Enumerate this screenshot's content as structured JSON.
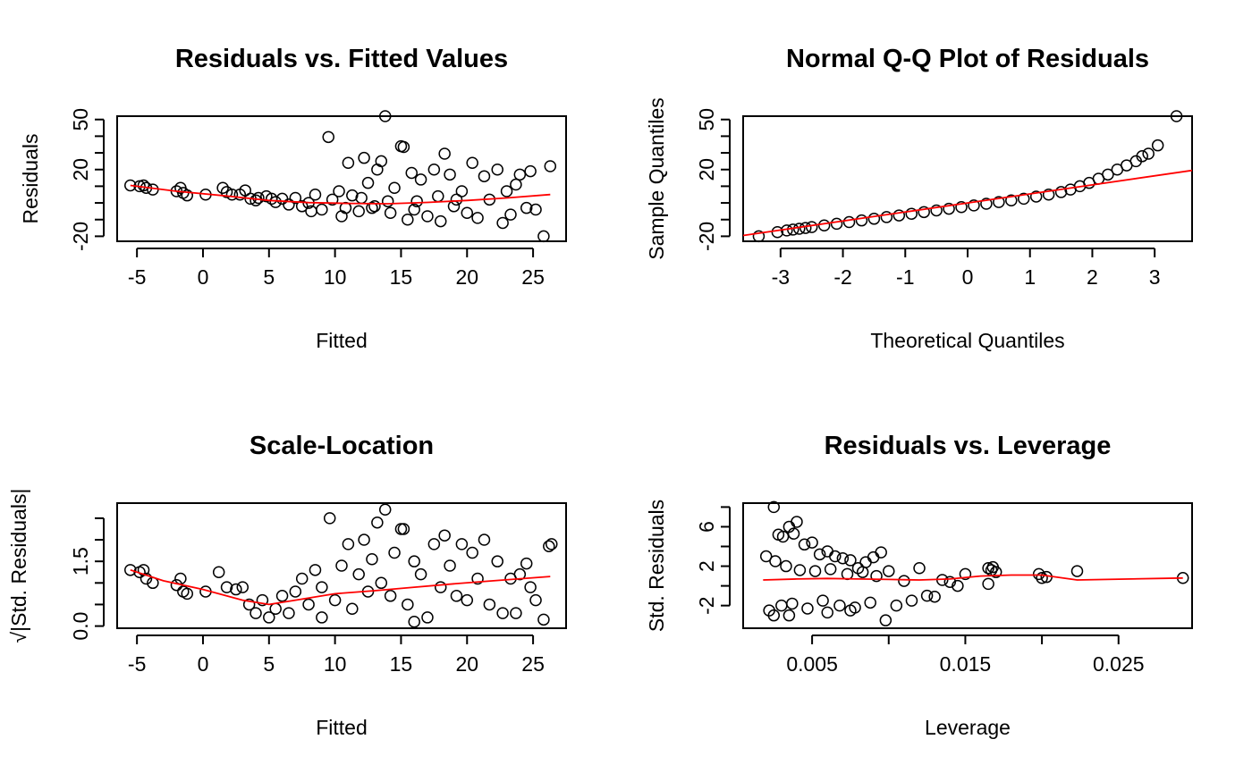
{
  "chart_data": [
    {
      "type": "scatter",
      "title": "Residuals vs. Fitted Values",
      "xlabel": "Fitted",
      "ylabel": "Residuals",
      "xlim": [
        -6.5,
        27.5
      ],
      "ylim": [
        -23,
        52
      ],
      "xticks": [
        -5,
        0,
        5,
        10,
        15,
        20,
        25
      ],
      "yticks": [
        -20,
        -10,
        0,
        10,
        20,
        30,
        40,
        50
      ],
      "ytick_labels": [
        "-20",
        "",
        "",
        "",
        "20",
        "",
        "",
        "50"
      ],
      "points": [
        [
          -5.5,
          10.5
        ],
        [
          -4.8,
          10
        ],
        [
          -4.5,
          10.5
        ],
        [
          -4.3,
          9
        ],
        [
          -3.8,
          8
        ],
        [
          -2,
          7
        ],
        [
          -1.7,
          9
        ],
        [
          -1.5,
          6
        ],
        [
          -1.2,
          4.5
        ],
        [
          0.2,
          5
        ],
        [
          1.5,
          9
        ],
        [
          1.8,
          6.5
        ],
        [
          2.2,
          5
        ],
        [
          2.8,
          5
        ],
        [
          3.2,
          7.5
        ],
        [
          3.6,
          2.5
        ],
        [
          4,
          1.5
        ],
        [
          4.2,
          3
        ],
        [
          4.8,
          4
        ],
        [
          5.2,
          2.5
        ],
        [
          5.5,
          0.5
        ],
        [
          6,
          2.5
        ],
        [
          6.5,
          -1
        ],
        [
          7,
          3
        ],
        [
          7.5,
          -2
        ],
        [
          8,
          0
        ],
        [
          8.5,
          5
        ],
        [
          9,
          -4
        ],
        [
          9.5,
          39.5
        ],
        [
          9.8,
          2
        ],
        [
          10.3,
          7
        ],
        [
          10.5,
          -8
        ],
        [
          11,
          24
        ],
        [
          11.3,
          4.5
        ],
        [
          11.8,
          -5
        ],
        [
          12.2,
          27
        ],
        [
          12.5,
          12
        ],
        [
          12.8,
          -3
        ],
        [
          13.2,
          20
        ],
        [
          13.5,
          25
        ],
        [
          13.8,
          52
        ],
        [
          14.2,
          -6
        ],
        [
          14.5,
          9
        ],
        [
          15,
          34
        ],
        [
          15.2,
          33.5
        ],
        [
          15.5,
          -10
        ],
        [
          15.8,
          18
        ],
        [
          16.2,
          1
        ],
        [
          16.5,
          14
        ],
        [
          17,
          -8
        ],
        [
          17.5,
          20
        ],
        [
          18,
          -11
        ],
        [
          18.3,
          29.5
        ],
        [
          18.7,
          17
        ],
        [
          19.2,
          2
        ],
        [
          19.6,
          7
        ],
        [
          20,
          -6
        ],
        [
          20.4,
          24
        ],
        [
          20.8,
          -9
        ],
        [
          21.3,
          16
        ],
        [
          21.7,
          2
        ],
        [
          22.3,
          20
        ],
        [
          22.7,
          -12
        ],
        [
          23,
          7
        ],
        [
          23.3,
          -7
        ],
        [
          23.7,
          11
        ],
        [
          24,
          17
        ],
        [
          24.5,
          -3
        ],
        [
          24.8,
          19
        ],
        [
          25.2,
          -4
        ],
        [
          25.8,
          -20
        ],
        [
          26.3,
          22
        ],
        [
          8.2,
          -5
        ],
        [
          10.8,
          -3
        ],
        [
          12,
          3
        ],
        [
          13,
          -2
        ],
        [
          14,
          1
        ],
        [
          16,
          -4
        ],
        [
          17.8,
          4
        ],
        [
          19,
          -2
        ]
      ],
      "smooth": [
        [
          -5.5,
          10.5
        ],
        [
          -2,
          7
        ],
        [
          2,
          4
        ],
        [
          5,
          1.5
        ],
        [
          8,
          0.2
        ],
        [
          11,
          -0.3
        ],
        [
          14,
          -0.5
        ],
        [
          17,
          0.3
        ],
        [
          20,
          1.5
        ],
        [
          23,
          3
        ],
        [
          26.3,
          5
        ]
      ]
    },
    {
      "type": "scatter",
      "title": "Normal Q-Q Plot of Residuals",
      "xlabel": "Theoretical Quantiles",
      "ylabel": "Sample Quantiles",
      "xlim": [
        -3.6,
        3.6
      ],
      "ylim": [
        -23,
        52
      ],
      "xticks": [
        -3,
        -2,
        -1,
        0,
        1,
        2,
        3
      ],
      "yticks": [
        -20,
        -10,
        0,
        10,
        20,
        30,
        40,
        50
      ],
      "ytick_labels": [
        "-20",
        "",
        "",
        "",
        "20",
        "",
        "",
        "50"
      ],
      "points": [
        [
          -3.35,
          -20
        ],
        [
          -3.05,
          -17.5
        ],
        [
          -2.9,
          -16.5
        ],
        [
          -2.8,
          -16
        ],
        [
          -2.7,
          -15.5
        ],
        [
          -2.6,
          -15
        ],
        [
          -2.5,
          -14.5
        ],
        [
          -2.3,
          -13.5
        ],
        [
          -2.1,
          -12.5
        ],
        [
          -1.9,
          -11.5
        ],
        [
          -1.7,
          -10.5
        ],
        [
          -1.5,
          -9.5
        ],
        [
          -1.3,
          -8.5
        ],
        [
          -1.1,
          -7.5
        ],
        [
          -0.9,
          -6.5
        ],
        [
          -0.7,
          -5.5
        ],
        [
          -0.5,
          -4.5
        ],
        [
          -0.3,
          -3.5
        ],
        [
          -0.1,
          -2.5
        ],
        [
          0.1,
          -1.5
        ],
        [
          0.3,
          -0.5
        ],
        [
          0.5,
          0.5
        ],
        [
          0.7,
          1.5
        ],
        [
          0.9,
          2.5
        ],
        [
          1.1,
          3.8
        ],
        [
          1.3,
          5
        ],
        [
          1.5,
          6.5
        ],
        [
          1.65,
          8
        ],
        [
          1.8,
          10
        ],
        [
          1.95,
          12
        ],
        [
          2.1,
          14.5
        ],
        [
          2.25,
          17
        ],
        [
          2.4,
          20
        ],
        [
          2.55,
          22.5
        ],
        [
          2.7,
          25
        ],
        [
          2.8,
          28
        ],
        [
          2.9,
          29.5
        ],
        [
          3.05,
          34.5
        ],
        [
          3.35,
          52
        ]
      ],
      "fit_line": [
        [
          -3.6,
          -19.5
        ],
        [
          3.6,
          19.5
        ]
      ]
    },
    {
      "type": "scatter",
      "title": "Scale-Location",
      "xlabel": "Fitted",
      "ylabel": "√|Std. Residuals|",
      "xlim": [
        -6.5,
        27.5
      ],
      "ylim": [
        -0.05,
        2.85
      ],
      "xticks": [
        -5,
        0,
        5,
        10,
        15,
        20,
        25
      ],
      "yticks": [
        0,
        0.5,
        1,
        1.5,
        2,
        2.5
      ],
      "ytick_labels": [
        "0.0",
        "",
        "",
        "1.5",
        "",
        ""
      ],
      "points": [
        [
          -5.5,
          1.3
        ],
        [
          -4.8,
          1.25
        ],
        [
          -4.5,
          1.3
        ],
        [
          -4.3,
          1.1
        ],
        [
          -3.8,
          1
        ],
        [
          -2,
          0.95
        ],
        [
          -1.7,
          1.1
        ],
        [
          -1.5,
          0.8
        ],
        [
          -1.2,
          0.75
        ],
        [
          0.2,
          0.8
        ],
        [
          1.2,
          1.25
        ],
        [
          1.8,
          0.9
        ],
        [
          2.5,
          0.85
        ],
        [
          3,
          0.9
        ],
        [
          3.5,
          0.5
        ],
        [
          4,
          0.3
        ],
        [
          4.5,
          0.6
        ],
        [
          5,
          0.2
        ],
        [
          5.5,
          0.4
        ],
        [
          6,
          0.7
        ],
        [
          6.5,
          0.3
        ],
        [
          7,
          0.8
        ],
        [
          7.5,
          1.1
        ],
        [
          8,
          0.5
        ],
        [
          8.5,
          1.3
        ],
        [
          9,
          0.9
        ],
        [
          9.6,
          2.5
        ],
        [
          10,
          0.6
        ],
        [
          10.5,
          1.4
        ],
        [
          11,
          1.9
        ],
        [
          11.3,
          0.4
        ],
        [
          11.8,
          1.2
        ],
        [
          12.2,
          2
        ],
        [
          12.5,
          0.8
        ],
        [
          12.8,
          1.55
        ],
        [
          13.2,
          2.4
        ],
        [
          13.5,
          1
        ],
        [
          13.8,
          2.7
        ],
        [
          14.2,
          0.7
        ],
        [
          14.5,
          1.7
        ],
        [
          15,
          2.25
        ],
        [
          15.2,
          2.25
        ],
        [
          15.5,
          0.5
        ],
        [
          16,
          1.5
        ],
        [
          16.5,
          1.2
        ],
        [
          17,
          0.2
        ],
        [
          17.5,
          1.9
        ],
        [
          18,
          0.9
        ],
        [
          18.3,
          2.1
        ],
        [
          18.7,
          1.4
        ],
        [
          19.2,
          0.7
        ],
        [
          19.6,
          1.9
        ],
        [
          20,
          0.6
        ],
        [
          20.4,
          1.7
        ],
        [
          20.8,
          1.1
        ],
        [
          21.3,
          2
        ],
        [
          21.7,
          0.5
        ],
        [
          22.3,
          1.5
        ],
        [
          22.7,
          0.3
        ],
        [
          23.3,
          1.1
        ],
        [
          23.7,
          0.3
        ],
        [
          24,
          1.2
        ],
        [
          24.5,
          1.45
        ],
        [
          24.8,
          0.9
        ],
        [
          25.2,
          0.6
        ],
        [
          25.8,
          0.15
        ],
        [
          26.2,
          1.85
        ],
        [
          26.4,
          1.9
        ],
        [
          9,
          0.2
        ],
        [
          16,
          0.1
        ]
      ],
      "smooth": [
        [
          -5.5,
          1.3
        ],
        [
          -3,
          1.05
        ],
        [
          0,
          0.85
        ],
        [
          3,
          0.6
        ],
        [
          5,
          0.5
        ],
        [
          7,
          0.6
        ],
        [
          10,
          0.75
        ],
        [
          13,
          0.82
        ],
        [
          16,
          0.9
        ],
        [
          19,
          0.98
        ],
        [
          22,
          1.05
        ],
        [
          26.3,
          1.15
        ]
      ]
    },
    {
      "type": "scatter",
      "title": "Residuals vs. Leverage",
      "xlabel": "Leverage",
      "ylabel": "Std. Residuals",
      "xlim": [
        0.0005,
        0.0298
      ],
      "ylim": [
        -4.3,
        8.4
      ],
      "xticks": [
        0.005,
        0.01,
        0.015,
        0.02,
        0.025
      ],
      "xtick_labels": [
        "0.005",
        "",
        "0.015",
        "",
        "0.025"
      ],
      "yticks": [
        -2,
        0,
        2,
        4,
        6,
        8
      ],
      "ytick_labels": [
        "-2",
        "",
        "2",
        "",
        "6",
        ""
      ],
      "points": [
        [
          0.0025,
          8
        ],
        [
          0.0028,
          5.2
        ],
        [
          0.0031,
          5
        ],
        [
          0.0035,
          6
        ],
        [
          0.0038,
          5.3
        ],
        [
          0.004,
          6.5
        ],
        [
          0.0045,
          4.2
        ],
        [
          0.005,
          4.4
        ],
        [
          0.0055,
          3.2
        ],
        [
          0.006,
          3.5
        ],
        [
          0.0065,
          3
        ],
        [
          0.007,
          2.8
        ],
        [
          0.0075,
          2.6
        ],
        [
          0.008,
          1.8
        ],
        [
          0.0085,
          2.4
        ],
        [
          0.009,
          2.9
        ],
        [
          0.0095,
          3.4
        ],
        [
          0.0098,
          -3.5
        ],
        [
          0.01,
          1.5
        ],
        [
          0.011,
          0.5
        ],
        [
          0.012,
          1.8
        ],
        [
          0.0125,
          -1
        ],
        [
          0.013,
          -1.1
        ],
        [
          0.0135,
          0.6
        ],
        [
          0.014,
          0.4
        ],
        [
          0.0145,
          0
        ],
        [
          0.015,
          1.2
        ],
        [
          0.0165,
          1.8
        ],
        [
          0.0167,
          1.6
        ],
        [
          0.0168,
          1.9
        ],
        [
          0.017,
          1.4
        ],
        [
          0.0165,
          0.2
        ],
        [
          0.0198,
          1.2
        ],
        [
          0.02,
          0.8
        ],
        [
          0.0203,
          0.9
        ],
        [
          0.0223,
          1.5
        ],
        [
          0.0292,
          0.8
        ],
        [
          0.002,
          3
        ],
        [
          0.0022,
          -2.5
        ],
        [
          0.0026,
          2.5
        ],
        [
          0.003,
          -2
        ],
        [
          0.0033,
          2
        ],
        [
          0.0037,
          -1.8
        ],
        [
          0.0042,
          1.6
        ],
        [
          0.0047,
          -2.3
        ],
        [
          0.0052,
          1.5
        ],
        [
          0.0057,
          -1.5
        ],
        [
          0.0062,
          1.7
        ],
        [
          0.0068,
          -2
        ],
        [
          0.0073,
          1.2
        ],
        [
          0.0078,
          -2.2
        ],
        [
          0.0083,
          1.4
        ],
        [
          0.0088,
          -1.7
        ],
        [
          0.0092,
          1
        ],
        [
          0.0105,
          -2
        ],
        [
          0.0115,
          -1.5
        ],
        [
          0.0025,
          -3
        ],
        [
          0.0035,
          -3
        ],
        [
          0.006,
          -2.7
        ],
        [
          0.0075,
          -2.5
        ]
      ],
      "smooth": [
        [
          0.0018,
          0.6
        ],
        [
          0.004,
          0.7
        ],
        [
          0.006,
          0.75
        ],
        [
          0.008,
          0.7
        ],
        [
          0.01,
          0.65
        ],
        [
          0.012,
          0.6
        ],
        [
          0.014,
          0.7
        ],
        [
          0.016,
          1
        ],
        [
          0.018,
          1.1
        ],
        [
          0.02,
          1.1
        ],
        [
          0.0223,
          0.6
        ],
        [
          0.0292,
          0.8
        ]
      ]
    }
  ]
}
